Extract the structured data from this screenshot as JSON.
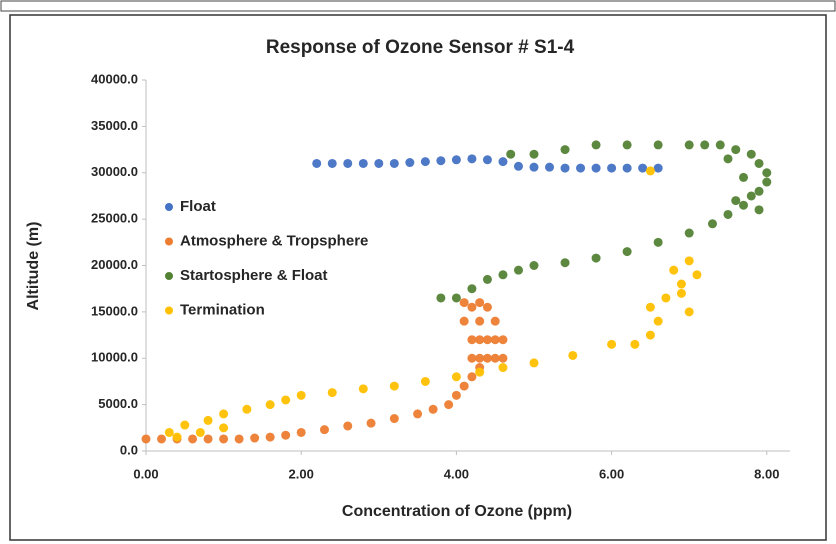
{
  "chart_data": {
    "type": "scatter",
    "title": "Response of Ozone Sensor # S1-4",
    "x_label": "Concentration of Ozone (ppm)",
    "y_label": "Altitude (m)",
    "xlim": [
      0,
      8.3
    ],
    "ylim": [
      0,
      40000
    ],
    "xticks": [
      {
        "value": 0,
        "label": "0.00"
      },
      {
        "value": 2,
        "label": "2.00"
      },
      {
        "value": 4,
        "label": "4.00"
      },
      {
        "value": 6,
        "label": "6.00"
      },
      {
        "value": 8,
        "label": "8.00"
      }
    ],
    "yticks": [
      {
        "value": 0,
        "label": "0.0"
      },
      {
        "value": 5000,
        "label": "5000.0"
      },
      {
        "value": 10000,
        "label": "10000.0"
      },
      {
        "value": 15000,
        "label": "15000.0"
      },
      {
        "value": 20000,
        "label": "20000.0"
      },
      {
        "value": 25000,
        "label": "25000.0"
      },
      {
        "value": 30000,
        "label": "30000.0"
      },
      {
        "value": 35000,
        "label": "35000.0"
      },
      {
        "value": 40000,
        "label": "40000.0"
      }
    ],
    "grid": false,
    "legend": "left",
    "series": [
      {
        "name": "Float",
        "color": "#4472c4",
        "x": [
          2.2,
          2.4,
          2.6,
          2.8,
          3.0,
          3.2,
          3.4,
          3.6,
          3.8,
          4.0,
          4.2,
          4.4,
          4.6,
          4.8,
          5.0,
          5.2,
          5.4,
          5.6,
          5.8,
          6.0,
          6.2,
          6.4,
          6.6
        ],
        "values": [
          31000,
          31000,
          31000,
          31000,
          31000,
          31000,
          31100,
          31200,
          31300,
          31400,
          31500,
          31400,
          31200,
          30700,
          30600,
          30600,
          30500,
          30500,
          30500,
          30500,
          30500,
          30500,
          30500
        ]
      },
      {
        "name": "Atmosphere & Tropsphere",
        "color": "#ed7d31",
        "x": [
          0.0,
          0.2,
          0.4,
          0.6,
          0.8,
          1.0,
          1.2,
          1.4,
          1.6,
          1.8,
          2.0,
          2.3,
          2.6,
          2.9,
          3.2,
          3.5,
          3.7,
          3.9,
          4.0,
          4.1,
          4.2,
          4.3,
          4.2,
          4.3,
          4.4,
          4.5,
          4.6,
          4.2,
          4.3,
          4.4,
          4.5,
          4.6,
          4.1,
          4.3,
          4.5,
          4.2,
          4.4,
          4.1,
          4.3
        ],
        "values": [
          1300,
          1300,
          1300,
          1300,
          1300,
          1300,
          1300,
          1400,
          1500,
          1700,
          2000,
          2300,
          2700,
          3000,
          3500,
          4000,
          4500,
          5000,
          6000,
          7000,
          8000,
          9000,
          10000,
          10000,
          10000,
          10000,
          10000,
          12000,
          12000,
          12000,
          12000,
          12000,
          14000,
          14000,
          14000,
          15500,
          15500,
          16000,
          16000
        ]
      },
      {
        "name": "Startosphere & Float",
        "color": "#548235",
        "x": [
          3.8,
          4.0,
          4.2,
          4.4,
          4.6,
          4.8,
          5.0,
          5.4,
          5.8,
          6.2,
          6.6,
          7.0,
          7.3,
          7.5,
          7.7,
          7.8,
          7.9,
          8.0,
          8.0,
          7.9,
          7.8,
          7.6,
          7.4,
          7.2,
          7.0,
          6.6,
          6.2,
          5.8,
          5.4,
          5.0,
          4.7,
          7.6,
          7.7,
          7.9,
          7.5
        ],
        "values": [
          16500,
          16500,
          17500,
          18500,
          19000,
          19500,
          20000,
          20300,
          20800,
          21500,
          22500,
          23500,
          24500,
          25500,
          26500,
          27500,
          28000,
          29000,
          30000,
          31000,
          32000,
          32500,
          33000,
          33000,
          33000,
          33000,
          33000,
          33000,
          32500,
          32000,
          32000,
          27000,
          29500,
          26000,
          31500
        ]
      },
      {
        "name": "Termination",
        "color": "#ffc000",
        "x": [
          0.3,
          0.5,
          0.8,
          1.0,
          1.3,
          1.6,
          1.8,
          0.4,
          0.7,
          1.0,
          2.0,
          2.4,
          2.8,
          3.2,
          3.6,
          4.0,
          4.3,
          4.6,
          5.0,
          5.5,
          6.0,
          6.3,
          6.5,
          6.6,
          6.5,
          6.7,
          6.9,
          6.8,
          7.0,
          7.1,
          6.9,
          7.0,
          6.5
        ],
        "values": [
          2000,
          2800,
          3300,
          4000,
          4500,
          5000,
          5500,
          1500,
          2000,
          2500,
          6000,
          6300,
          6700,
          7000,
          7500,
          8000,
          8500,
          9000,
          9500,
          10300,
          11500,
          11500,
          12500,
          14000,
          15500,
          16500,
          18000,
          19500,
          20500,
          19000,
          17000,
          15000,
          30200
        ]
      }
    ]
  }
}
